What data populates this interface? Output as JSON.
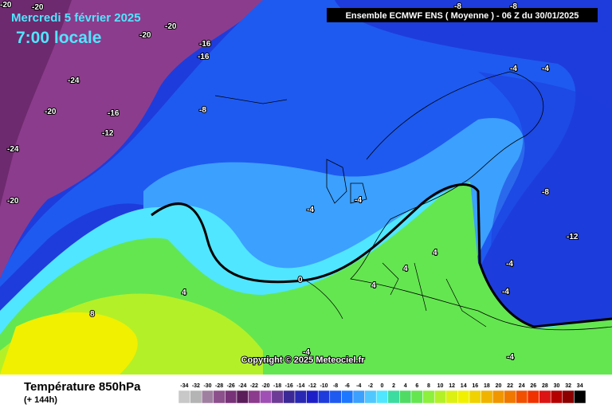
{
  "header": {
    "date": "Mercredi 5 février 2025",
    "time": "7:00 locale",
    "model": "Ensemble ECMWF ENS  ( Moyenne )  -  06 Z du 30/01/2025",
    "copyright": "Copyright © 2025 Meteociel.fr"
  },
  "footer": {
    "title": "Température 850hPa",
    "lead": "(+ 144h)"
  },
  "contour_labels": [
    "-20",
    "-20",
    "-20",
    "-16",
    "-16",
    "-24",
    "-20",
    "-20",
    "-16",
    "-12",
    "-8",
    "-24",
    "-20",
    "-8",
    "-8",
    "-4",
    "-4",
    "-4",
    "-4",
    "-8",
    "-12",
    "-4",
    "-4",
    "0",
    "4",
    "4",
    "4",
    "8",
    "4",
    "-4",
    "-4"
  ],
  "scale": {
    "values": [
      -34,
      -32,
      -30,
      -28,
      -26,
      -24,
      -22,
      -20,
      -18,
      -16,
      -14,
      -12,
      -10,
      -8,
      -6,
      -4,
      -2,
      0,
      2,
      4,
      6,
      8,
      10,
      12,
      14,
      16,
      18,
      20,
      22,
      24,
      26,
      28,
      30,
      32,
      34
    ],
    "colors": [
      "#c8c8c8",
      "#b4b4b4",
      "#a080a0",
      "#8c508c",
      "#783278",
      "#5a1e5a",
      "#8c3c8c",
      "#a050b4",
      "#6e3c96",
      "#3c2896",
      "#2828b4",
      "#1e1ec8",
      "#1e3cdc",
      "#1e5af0",
      "#1e78ff",
      "#3ca0ff",
      "#50c8ff",
      "#50e6ff",
      "#3cdca0",
      "#50dc64",
      "#64e650",
      "#8cf03c",
      "#b4f028",
      "#dcf014",
      "#f0f000",
      "#f0d200",
      "#f0b400",
      "#f09600",
      "#f07800",
      "#f05000",
      "#f03200",
      "#dc1414",
      "#b40000",
      "#8c0000",
      "#000000"
    ]
  }
}
